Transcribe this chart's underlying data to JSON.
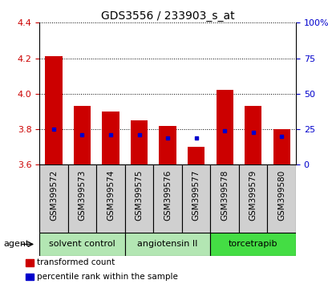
{
  "title": "GDS3556 / 233903_s_at",
  "samples": [
    "GSM399572",
    "GSM399573",
    "GSM399574",
    "GSM399575",
    "GSM399576",
    "GSM399577",
    "GSM399578",
    "GSM399579",
    "GSM399580"
  ],
  "bar_values": [
    4.21,
    3.93,
    3.9,
    3.85,
    3.82,
    3.7,
    4.02,
    3.93,
    3.8
  ],
  "bar_base": 3.6,
  "percentile_values": [
    3.8,
    3.77,
    3.77,
    3.77,
    3.75,
    3.75,
    3.79,
    3.78,
    3.76
  ],
  "ylim": [
    3.6,
    4.4
  ],
  "yticks_left": [
    3.6,
    3.8,
    4.0,
    4.2,
    4.4
  ],
  "yticks_right": [
    0,
    25,
    50,
    75,
    100
  ],
  "bar_color": "#cc0000",
  "percentile_color": "#0000cc",
  "bar_width": 0.6,
  "agent_groups": [
    {
      "label": "solvent control",
      "start": 0,
      "end": 3,
      "color": "#b3e6b3"
    },
    {
      "label": "angiotensin II",
      "start": 3,
      "end": 6,
      "color": "#b3e6b3"
    },
    {
      "label": "torcetrapib",
      "start": 6,
      "end": 9,
      "color": "#44dd44"
    }
  ],
  "agent_label": "agent",
  "legend_items": [
    {
      "label": "transformed count",
      "color": "#cc0000"
    },
    {
      "label": "percentile rank within the sample",
      "color": "#0000cc"
    }
  ],
  "tick_color_left": "#cc0000",
  "tick_color_right": "#0000cc",
  "background_xlabels": "#d0d0d0",
  "xlabels_fontsize": 7.5,
  "title_fontsize": 10,
  "legend_fontsize": 7.5,
  "agent_fontsize": 8
}
